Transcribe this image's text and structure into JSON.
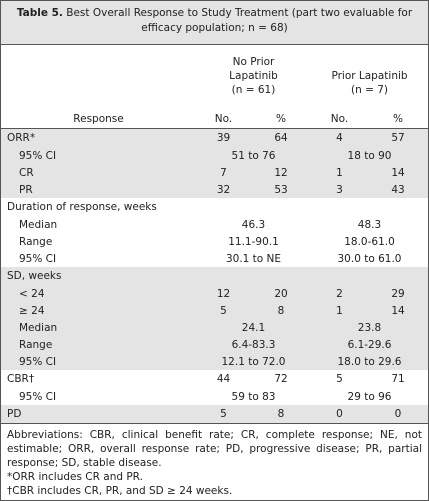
{
  "title": {
    "label": "Table 5.",
    "text": "Best Overall Response to Study Treatment (part two evaluable for efficacy population; n = 68)"
  },
  "header": {
    "response": "Response",
    "groups": [
      {
        "name": "No Prior Lapatinib",
        "n": "(n = 61)"
      },
      {
        "name": "Prior Lapatinib",
        "n": "(n = 7)"
      }
    ],
    "columns": [
      "No.",
      "%",
      "No.",
      "%"
    ]
  },
  "rows": [
    {
      "label": "ORR*",
      "shaded": true,
      "indent": false,
      "cells": [
        "39",
        "64",
        "4",
        "57"
      ]
    },
    {
      "label": "95% CI",
      "shaded": true,
      "indent": true,
      "spans": [
        "51 to 76",
        "18 to 90"
      ]
    },
    {
      "label": "CR",
      "shaded": true,
      "indent": true,
      "cells": [
        "7",
        "12",
        "1",
        "14"
      ]
    },
    {
      "label": "PR",
      "shaded": true,
      "indent": true,
      "cells": [
        "32",
        "53",
        "3",
        "43"
      ]
    },
    {
      "label": "Duration of response, weeks",
      "shaded": false,
      "indent": false
    },
    {
      "label": "Median",
      "shaded": false,
      "indent": true,
      "spans": [
        "46.3",
        "48.3"
      ]
    },
    {
      "label": "Range",
      "shaded": false,
      "indent": true,
      "spans": [
        "11.1-90.1",
        "18.0-61.0"
      ]
    },
    {
      "label": "95% CI",
      "shaded": false,
      "indent": true,
      "spans": [
        "30.1 to NE",
        "30.0 to 61.0"
      ]
    },
    {
      "label": "SD, weeks",
      "shaded": true,
      "indent": false
    },
    {
      "label": "< 24",
      "shaded": true,
      "indent": true,
      "cells": [
        "12",
        "20",
        "2",
        "29"
      ]
    },
    {
      "label": "≥ 24",
      "shaded": true,
      "indent": true,
      "cells": [
        "5",
        "8",
        "1",
        "14"
      ]
    },
    {
      "label": "Median",
      "shaded": true,
      "indent": true,
      "spans": [
        "24.1",
        "23.8"
      ]
    },
    {
      "label": "Range",
      "shaded": true,
      "indent": true,
      "spans": [
        "6.4-83.3",
        "6.1-29.6"
      ]
    },
    {
      "label": "95% CI",
      "shaded": true,
      "indent": true,
      "spans": [
        "12.1 to 72.0",
        "18.0 to 29.6"
      ]
    },
    {
      "label": "CBR†",
      "shaded": false,
      "indent": false,
      "cells": [
        "44",
        "72",
        "5",
        "71"
      ]
    },
    {
      "label": "95% CI",
      "shaded": false,
      "indent": true,
      "spans": [
        "59 to 83",
        "29 to 96"
      ]
    },
    {
      "label": "PD",
      "shaded": true,
      "indent": false,
      "cells": [
        "5",
        "8",
        "0",
        "0"
      ]
    }
  ],
  "footnotes": [
    "Abbreviations: CBR, clinical benefit rate; CR, complete response; NE, not estimable; ORR, overall response rate; PD, progressive disease; PR, partial response; SD, stable disease.",
    "*ORR includes CR and PR.",
    "†CBR includes CR, PR, and SD ≥ 24 weeks."
  ]
}
